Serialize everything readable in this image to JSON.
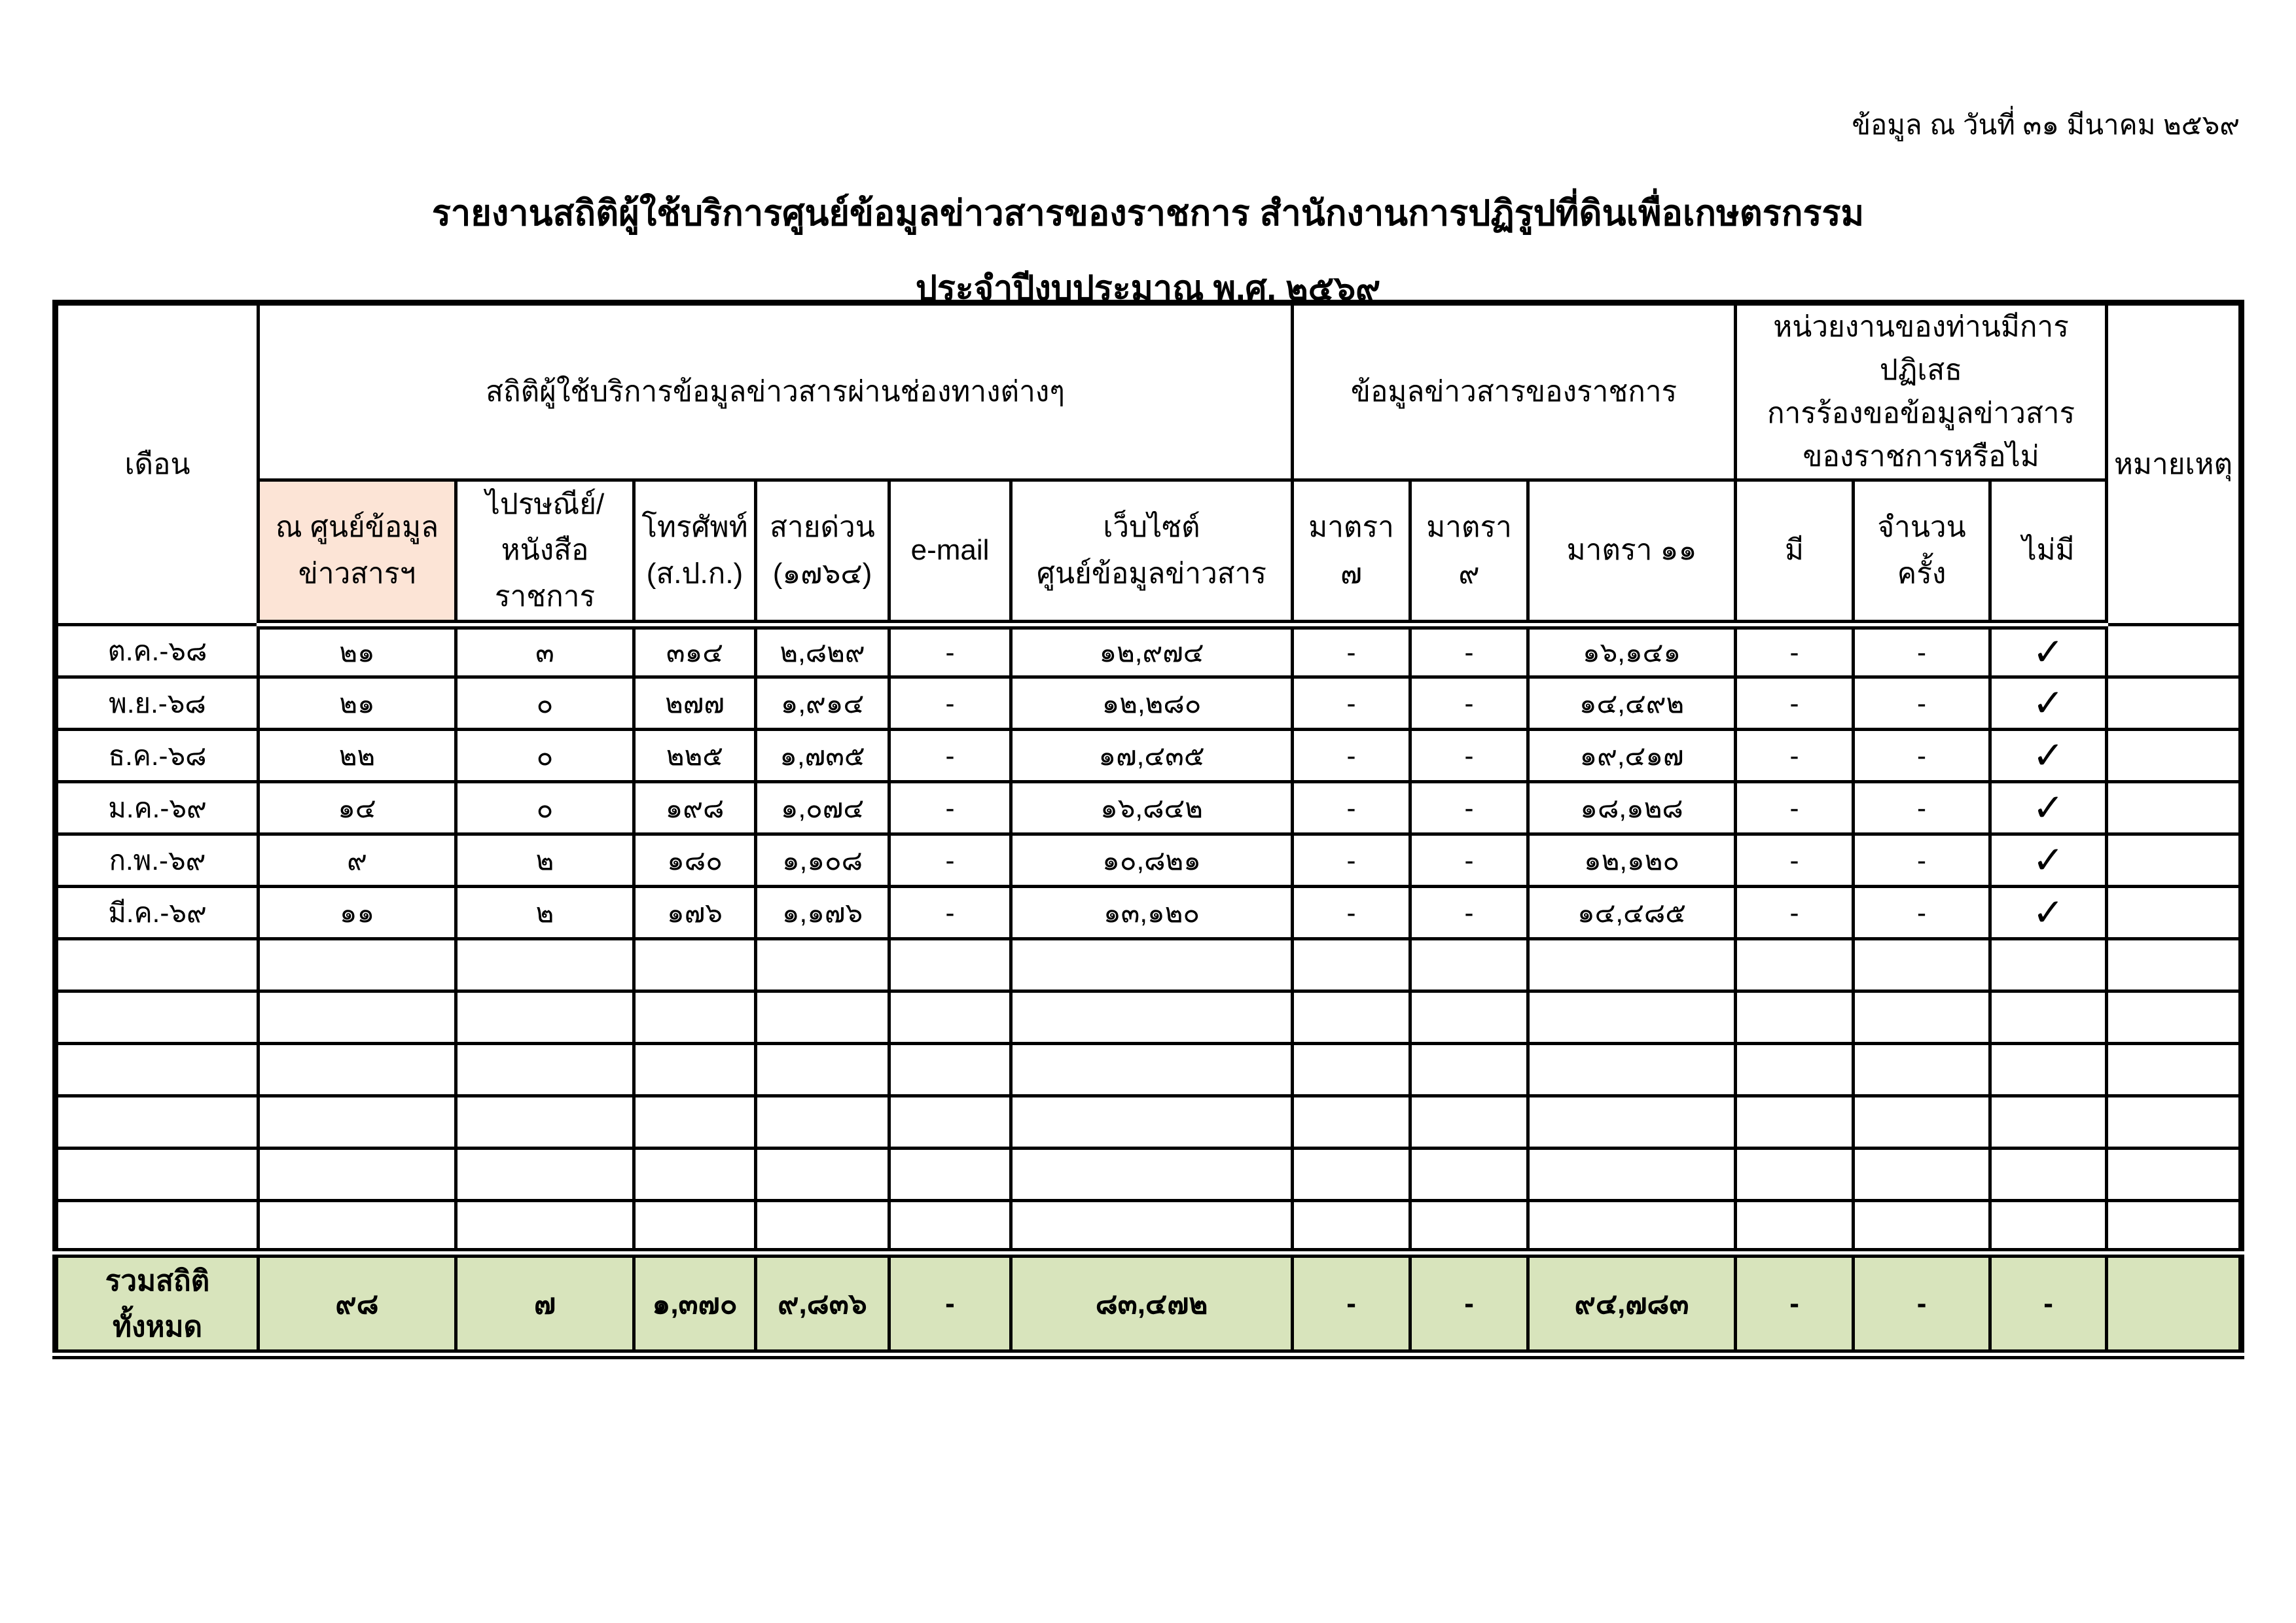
{
  "page": {
    "date_note": "ข้อมูล ณ วันที่ ๓๑ มีนาคม ๒๕๖๙",
    "title": "รายงานสถิติผู้ใช้บริการศูนย์ข้อมูลข่าวสารของราชการ สำนักงานการปฏิรูปที่ดินเพื่อเกษตรกรรม",
    "subtitle": "ประจำปีงบประมาณ พ.ศ. ๒๕๖๙"
  },
  "table": {
    "col_month": "เดือน",
    "col_remark": "หมายเหตุ",
    "check_glyph": "✓",
    "colors": {
      "highlight": "#fce4d6",
      "total_bg": "#d8e4bc",
      "border": "#000000"
    },
    "groups": [
      {
        "label": "สถิติผู้ใช้บริการข้อมูลข่าวสารผ่านช่องทางต่างๆ"
      },
      {
        "label": "ข้อมูลข่าวสารของราชการ"
      },
      {
        "label_lines": [
          "หน่วยงานของท่านมีการปฏิเสธ",
          "การร้องขอข้อมูลข่าวสาร",
          "ของราชการหรือไม่"
        ]
      }
    ],
    "subheaders": [
      {
        "line1": "ณ ศูนย์ข้อมูล",
        "line2": "ข่าวสารฯ",
        "highlight": true
      },
      {
        "line1": "ไปรษณีย์/",
        "line2": "หนังสือราชการ"
      },
      {
        "line1": "โทรศัพท์",
        "line2": "(ส.ป.ก.)"
      },
      {
        "line1": "สายด่วน",
        "line2": "(๑๗๖๔)"
      },
      {
        "line1": "e-mail",
        "line2": ""
      },
      {
        "line1": "เว็บไซต์",
        "line2": "ศูนย์ข้อมูลข่าวสาร"
      },
      {
        "line1": "มาตรา ๗",
        "line2": ""
      },
      {
        "line1": "มาตรา ๙",
        "line2": ""
      },
      {
        "line1": "มาตรา ๑๑",
        "line2": ""
      },
      {
        "line1": "มี",
        "line2": ""
      },
      {
        "line1": "จำนวนครั้ง",
        "line2": ""
      },
      {
        "line1": "ไม่มี",
        "line2": ""
      }
    ],
    "rows": [
      {
        "month": "ต.ค.-๖๘",
        "values": [
          "๒๑",
          "๓",
          "๓๑๔",
          "๒,๘๒๙",
          "-",
          "๑๒,๙๗๔",
          "-",
          "-",
          "๑๖,๑๔๑",
          "-",
          "-",
          "✓"
        ],
        "remark": ""
      },
      {
        "month": "พ.ย.-๖๘",
        "values": [
          "๒๑",
          "๐",
          "๒๗๗",
          "๑,๙๑๔",
          "-",
          "๑๒,๒๘๐",
          "-",
          "-",
          "๑๔,๔๙๒",
          "-",
          "-",
          "✓"
        ],
        "remark": ""
      },
      {
        "month": "ธ.ค.-๖๘",
        "values": [
          "๒๒",
          "๐",
          "๒๒๕",
          "๑,๗๓๕",
          "-",
          "๑๗,๔๓๕",
          "-",
          "-",
          "๑๙,๔๑๗",
          "-",
          "-",
          "✓"
        ],
        "remark": ""
      },
      {
        "month": "ม.ค.-๖๙",
        "values": [
          "๑๔",
          "๐",
          "๑๙๘",
          "๑,๐๗๔",
          "-",
          "๑๖,๘๔๒",
          "-",
          "-",
          "๑๘,๑๒๘",
          "-",
          "-",
          "✓"
        ],
        "remark": ""
      },
      {
        "month": "ก.พ.-๖๙",
        "values": [
          "๙",
          "๒",
          "๑๘๐",
          "๑,๑๐๘",
          "-",
          "๑๐,๘๒๑",
          "-",
          "-",
          "๑๒,๑๒๐",
          "-",
          "-",
          "✓"
        ],
        "remark": ""
      },
      {
        "month": "มี.ค.-๖๙",
        "values": [
          "๑๑",
          "๒",
          "๑๗๖",
          "๑,๑๗๖",
          "-",
          "๑๓,๑๒๐",
          "-",
          "-",
          "๑๔,๔๘๕",
          "-",
          "-",
          "✓"
        ],
        "remark": ""
      }
    ],
    "empty_row_count": 6,
    "total": {
      "label": "รวมสถิติทั้งหมด",
      "values": [
        "๙๘",
        "๗",
        "๑,๓๗๐",
        "๙,๘๓๖",
        "-",
        "๘๓,๔๗๒",
        "-",
        "-",
        "๙๔,๗๘๓",
        "-",
        "-",
        "-"
      ],
      "remark": ""
    }
  }
}
